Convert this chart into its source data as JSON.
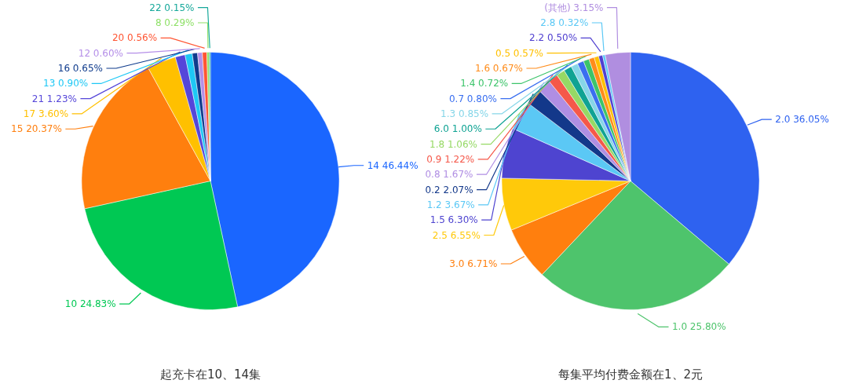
{
  "chart_data": [
    {
      "type": "pie",
      "title": "起充卡在10、14集",
      "categories": [
        "14",
        "10",
        "15",
        "17",
        "21",
        "13",
        "16",
        "12",
        "20",
        "8",
        "22"
      ],
      "values": [
        46.44,
        24.83,
        20.37,
        3.6,
        1.23,
        0.9,
        0.65,
        0.6,
        0.56,
        0.29,
        0.15
      ],
      "value_labels": [
        "46.44%",
        "24.83%",
        "20.37%",
        "3.60%",
        "1.23%",
        "0.90%",
        "0.65%",
        "0.60%",
        "0.56%",
        "0.29%",
        "0.15%"
      ],
      "colors": [
        "#1a66ff",
        "#00c853",
        "#ff7f0e",
        "#ffc000",
        "#5546d9",
        "#1ec8f5",
        "#0f3b8c",
        "#b58fe8",
        "#ff5533",
        "#8ee067",
        "#16a89a"
      ]
    },
    {
      "type": "pie",
      "title": "每集平均付费金额在1、2元",
      "categories": [
        "2.0",
        "1.0",
        "3.0",
        "2.5",
        "1.5",
        "1.2",
        "0.2",
        "0.8",
        "0.9",
        "1.8",
        "6.0",
        "1.3",
        "0.7",
        "1.4",
        "1.6",
        "0.5",
        "2.2",
        "2.8",
        "(其他)"
      ],
      "values": [
        36.05,
        25.8,
        6.71,
        6.55,
        6.3,
        3.67,
        2.07,
        1.67,
        1.22,
        1.06,
        1.0,
        0.85,
        0.8,
        0.72,
        0.67,
        0.57,
        0.5,
        0.32,
        3.15
      ],
      "value_labels": [
        "36.05%",
        "25.80%",
        "6.71%",
        "6.55%",
        "6.30%",
        "3.67%",
        "2.07%",
        "1.67%",
        "1.22%",
        "1.06%",
        "1.00%",
        "0.85%",
        "0.80%",
        "0.72%",
        "0.67%",
        "0.57%",
        "0.50%",
        "0.32%",
        "3.15%"
      ],
      "colors": [
        "#2e62f0",
        "#4ec46c",
        "#ff7f0e",
        "#ffc90a",
        "#4e44d0",
        "#5bc8f5",
        "#13388a",
        "#b08ee3",
        "#f5584a",
        "#96d965",
        "#0fa393",
        "#86d6e8",
        "#3a6ff0",
        "#3cc46a",
        "#ff8c1a",
        "#ffc000",
        "#5040d0",
        "#5bc8f5",
        "#b08ee0"
      ]
    }
  ]
}
